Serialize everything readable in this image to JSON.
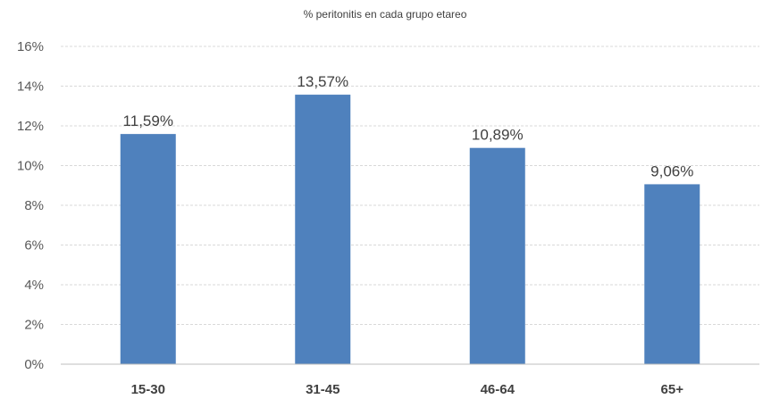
{
  "chart_data": {
    "type": "bar",
    "title": "% peritonitis en cada grupo etareo",
    "categories": [
      "15-30",
      "31-45",
      "46-64",
      "65+"
    ],
    "values": [
      11.59,
      13.57,
      10.89,
      9.06
    ],
    "data_labels": [
      "11,59%",
      "13,57%",
      "10,89%",
      "9,06%"
    ],
    "ylim": [
      0,
      16
    ],
    "yticks": [
      0,
      2,
      4,
      6,
      8,
      10,
      12,
      14,
      16
    ],
    "ytick_labels": [
      "0%",
      "2%",
      "4%",
      "6%",
      "8%",
      "10%",
      "12%",
      "14%",
      "16%"
    ],
    "xlabel": "",
    "ylabel": "",
    "grid": true,
    "legend": "none",
    "bar_color": "#4f81bd"
  }
}
